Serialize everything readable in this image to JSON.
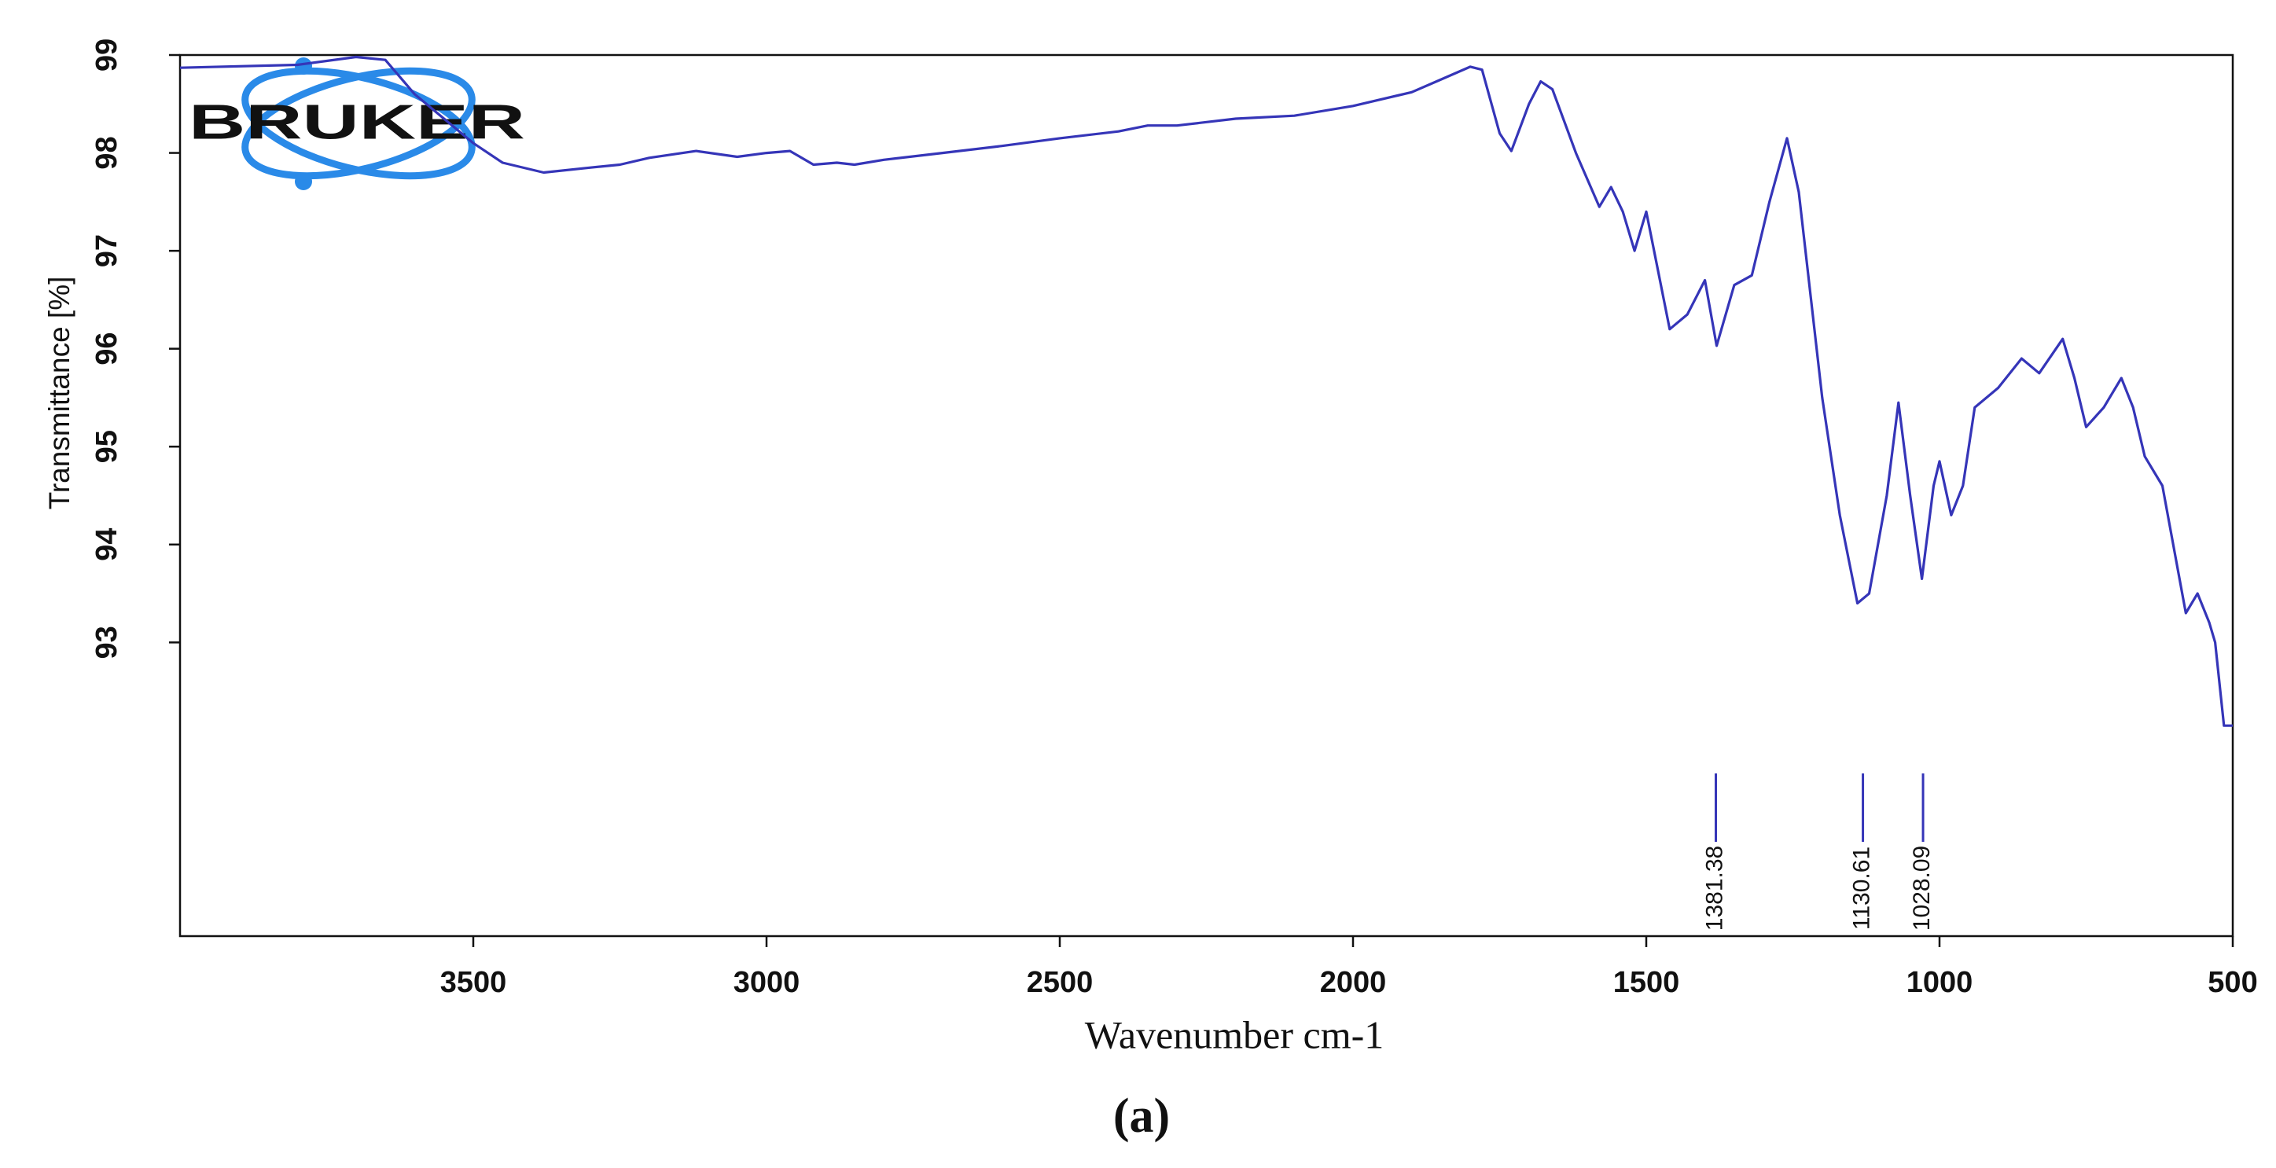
{
  "chart_data": {
    "type": "line",
    "ylabel": "Transmittance [%]",
    "xlabel": "Wavenumber cm-1",
    "caption": "(a)",
    "logo": "BRUKER",
    "color": "#3535b8",
    "xlim": [
      4000,
      500
    ],
    "xticks": [
      3500,
      3000,
      2500,
      2000,
      1500,
      1000,
      500
    ],
    "ylim": [
      90,
      99
    ],
    "yticks": [
      93,
      94,
      95,
      96,
      97,
      98,
      99
    ],
    "x": [
      4000,
      3800,
      3700,
      3650,
      3600,
      3500,
      3450,
      3380,
      3300,
      3250,
      3200,
      3120,
      3050,
      3000,
      2960,
      2920,
      2880,
      2850,
      2800,
      2700,
      2600,
      2500,
      2400,
      2350,
      2300,
      2200,
      2100,
      2000,
      1900,
      1850,
      1800,
      1780,
      1750,
      1730,
      1700,
      1680,
      1660,
      1620,
      1580,
      1560,
      1540,
      1520,
      1500,
      1480,
      1460,
      1430,
      1400,
      1380,
      1350,
      1320,
      1290,
      1260,
      1240,
      1200,
      1170,
      1140,
      1120,
      1090,
      1070,
      1050,
      1030,
      1010,
      1000,
      980,
      960,
      940,
      900,
      860,
      830,
      790,
      770,
      750,
      720,
      690,
      670,
      650,
      620,
      580,
      560,
      540,
      530,
      515,
      500
    ],
    "values": [
      98.87,
      98.9,
      98.98,
      98.95,
      98.6,
      98.1,
      97.9,
      97.8,
      97.85,
      97.88,
      97.95,
      98.02,
      97.96,
      98.0,
      98.02,
      97.88,
      97.9,
      97.88,
      97.93,
      98.0,
      98.07,
      98.15,
      98.22,
      98.28,
      98.28,
      98.35,
      98.38,
      98.48,
      98.62,
      98.75,
      98.88,
      98.85,
      98.2,
      98.02,
      98.5,
      98.73,
      98.65,
      98.0,
      97.45,
      97.65,
      97.4,
      97.0,
      97.4,
      96.8,
      96.2,
      96.35,
      96.7,
      96.03,
      96.65,
      96.75,
      97.5,
      98.15,
      97.6,
      95.5,
      94.3,
      93.4,
      93.5,
      94.5,
      95.45,
      94.5,
      93.65,
      94.6,
      94.85,
      94.3,
      94.6,
      95.4,
      95.6,
      95.9,
      95.75,
      96.1,
      95.7,
      95.2,
      95.4,
      95.7,
      95.4,
      94.9,
      94.6,
      93.3,
      93.5,
      93.2,
      93.0,
      92.15,
      92.15
    ],
    "peaks": [
      1381.38,
      1130.61,
      1028.09
    ]
  }
}
